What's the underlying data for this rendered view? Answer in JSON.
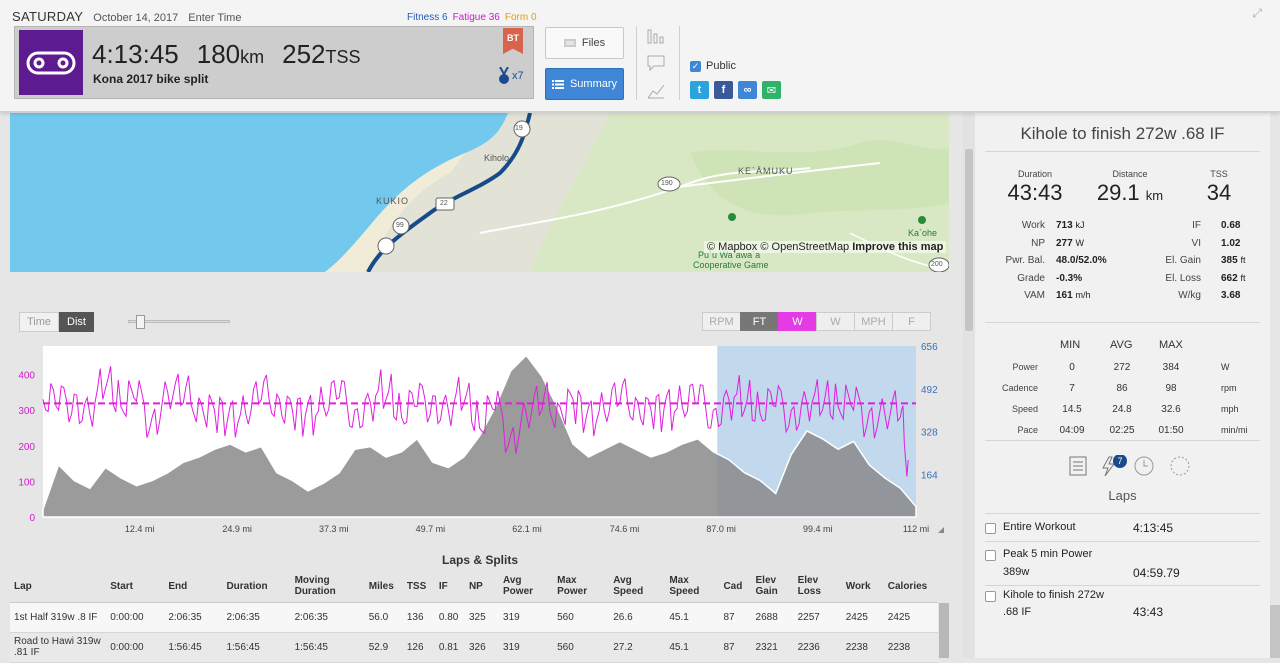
{
  "header": {
    "day": "SATURDAY",
    "date": "October 14, 2017",
    "enter_time": "Enter Time",
    "fitness_label": "Fitness",
    "fitness_value": "6",
    "fatigue_label": "Fatigue",
    "fatigue_value": "36",
    "form_label": "Form",
    "form_value": "0"
  },
  "workout": {
    "duration": "4:13:45",
    "distance_value": "180",
    "distance_unit": "km",
    "tss_value": "252",
    "tss_unit": "TSS",
    "title": "Kona 2017 bike split",
    "badge": "BT",
    "medal_count": "x7"
  },
  "buttons": {
    "files": "Files",
    "summary": "Summary"
  },
  "share": {
    "public_label": "Public"
  },
  "map": {
    "attribution_mapbox": "© Mapbox",
    "attribution_osm": "© OpenStreetMap",
    "attribution_improve": "Improve this map",
    "labels": {
      "kiholo": "Kiholo",
      "kukio": "KUKIO",
      "keamuku": "KE`ĀMUKU",
      "kaohe": "Ka`ohe",
      "puuwaawaa": "Pu`u Wa`awa`a",
      "coop_game": "Cooperative Game"
    },
    "route_shields": [
      "19",
      "99",
      "22",
      "190",
      "200"
    ]
  },
  "chart_controls": {
    "time": "Time",
    "dist": "Dist",
    "metric_buttons": [
      "RPM",
      "FT",
      "W",
      "W",
      "MPH",
      "F"
    ]
  },
  "chart_data": {
    "type": "area",
    "x_unit": "mi",
    "x_ticks": [
      "12.4 mi",
      "24.9 mi",
      "37.3 mi",
      "49.7 mi",
      "62.1 mi",
      "74.6 mi",
      "87.0 mi",
      "99.4 mi",
      "112 mi"
    ],
    "y_left_ticks": [
      "0",
      "100",
      "200",
      "300",
      "400"
    ],
    "y_right_ticks": [
      "164",
      "328",
      "492",
      "656"
    ],
    "xlim": [
      0,
      112
    ],
    "ylim_power": [
      0,
      480
    ],
    "ylim_elev": [
      0,
      656
    ],
    "selection_range_mi": [
      86.5,
      112
    ],
    "average_power": 319,
    "series": [
      {
        "name": "Power",
        "unit": "W",
        "color": "#e01ee0",
        "x": [
          0,
          2,
          4,
          6,
          8,
          10,
          12,
          14,
          16,
          18,
          20,
          22,
          24,
          26,
          28,
          30,
          32,
          34,
          36,
          38,
          40,
          42,
          44,
          46,
          48,
          50,
          52,
          54,
          56,
          58,
          60,
          62,
          64,
          66,
          68,
          70,
          72,
          74,
          76,
          78,
          80,
          82,
          84,
          86,
          88,
          90,
          92,
          94,
          96,
          98,
          100,
          102,
          104,
          106,
          108,
          110,
          111
        ],
        "values": [
          330,
          300,
          345,
          290,
          360,
          310,
          325,
          280,
          350,
          320,
          335,
          300,
          310,
          290,
          330,
          345,
          300,
          320,
          310,
          335,
          300,
          320,
          330,
          280,
          310,
          340,
          300,
          320,
          250,
          300,
          230,
          290,
          300,
          320,
          330,
          310,
          300,
          320,
          335,
          300,
          340,
          310,
          320,
          300,
          330,
          300,
          290,
          310,
          300,
          320,
          300,
          310,
          300,
          295,
          290,
          280,
          160
        ]
      },
      {
        "name": "Elevation",
        "unit": "ft",
        "color": "#8a8a8a",
        "x": [
          0,
          2,
          4,
          6,
          8,
          10,
          12,
          14,
          16,
          18,
          20,
          22,
          24,
          26,
          28,
          30,
          32,
          34,
          36,
          38,
          40,
          42,
          44,
          46,
          48,
          50,
          52,
          54,
          56,
          58,
          60,
          62,
          64,
          66,
          68,
          70,
          72,
          74,
          76,
          78,
          80,
          82,
          84,
          86,
          88,
          90,
          92,
          94,
          96,
          98,
          100,
          102,
          104,
          106,
          108,
          110,
          112
        ],
        "values": [
          30,
          200,
          140,
          110,
          190,
          150,
          120,
          140,
          170,
          210,
          230,
          260,
          280,
          250,
          270,
          170,
          140,
          100,
          130,
          170,
          260,
          270,
          230,
          250,
          300,
          210,
          190,
          230,
          310,
          420,
          560,
          620,
          540,
          420,
          280,
          230,
          260,
          290,
          260,
          230,
          250,
          280,
          300,
          250,
          220,
          170,
          140,
          90,
          240,
          330,
          300,
          260,
          290,
          200,
          150,
          110,
          40
        ]
      }
    ]
  },
  "laps_splits": {
    "title": "Laps & Splits",
    "columns": [
      "Lap",
      "Start",
      "End",
      "Duration",
      "Moving Duration",
      "Miles",
      "TSS",
      "IF",
      "NP",
      "Avg Power",
      "Max Power",
      "Avg Speed",
      "Max Speed",
      "Cad",
      "Elev Gain",
      "Elev Loss",
      "Work",
      "Calories"
    ],
    "rows": [
      [
        "1st Half 319w .8 IF",
        "0:00:00",
        "2:06:35",
        "2:06:35",
        "2:06:35",
        "56.0",
        "136",
        "0.80",
        "325",
        "319",
        "560",
        "26.6",
        "45.1",
        "87",
        "2688",
        "2257",
        "2425",
        "2425"
      ],
      [
        "Road to Hawi 319w .81 IF",
        "0:00:00",
        "1:56:45",
        "1:56:45",
        "1:56:45",
        "52.9",
        "126",
        "0.81",
        "326",
        "319",
        "560",
        "27.2",
        "45.1",
        "87",
        "2321",
        "2236",
        "2238",
        "2238"
      ]
    ]
  },
  "side": {
    "title": "Kihole to finish 272w .68 IF",
    "duration_label": "Duration",
    "duration_value": "43:43",
    "distance_label": "Distance",
    "distance_value": "29.1",
    "distance_unit": "km",
    "tss_label": "TSS",
    "tss_value": "34",
    "left_stats": [
      {
        "k": "Work",
        "v": "713",
        "u": "kJ"
      },
      {
        "k": "NP",
        "v": "277",
        "u": "W"
      },
      {
        "k": "Pwr. Bal.",
        "v": "48.0/52.0%",
        "u": ""
      },
      {
        "k": "Grade",
        "v": "-0.3%",
        "u": ""
      },
      {
        "k": "VAM",
        "v": "161",
        "u": "m/h"
      }
    ],
    "right_stats": [
      {
        "k": "IF",
        "v": "0.68",
        "u": ""
      },
      {
        "k": "VI",
        "v": "1.02",
        "u": ""
      },
      {
        "k": "El. Gain",
        "v": "385",
        "u": "ft"
      },
      {
        "k": "El. Loss",
        "v": "662",
        "u": "ft"
      },
      {
        "k": "W/kg",
        "v": "3.68",
        "u": ""
      }
    ],
    "mam_headers": [
      "MIN",
      "AVG",
      "MAX"
    ],
    "mam_rows": [
      {
        "label": "Power",
        "min": "0",
        "avg": "272",
        "max": "384",
        "unit": "W"
      },
      {
        "label": "Cadence",
        "min": "7",
        "avg": "86",
        "max": "98",
        "unit": "rpm"
      },
      {
        "label": "Speed",
        "min": "14.5",
        "avg": "24.8",
        "max": "32.6",
        "unit": "mph"
      },
      {
        "label": "Pace",
        "min": "04:09",
        "avg": "02:25",
        "max": "01:50",
        "unit": "min/mi"
      }
    ],
    "laps_badge": "7",
    "laps_heading": "Laps",
    "laps": [
      {
        "name": "Entire Workout",
        "time": "4:13:45"
      },
      {
        "name": "Peak 5 min Power",
        "name2": "389w",
        "time": "04:59.79"
      },
      {
        "name": "Kihole to finish 272w",
        "name2": ".68 IF",
        "time": "43:43"
      }
    ]
  }
}
